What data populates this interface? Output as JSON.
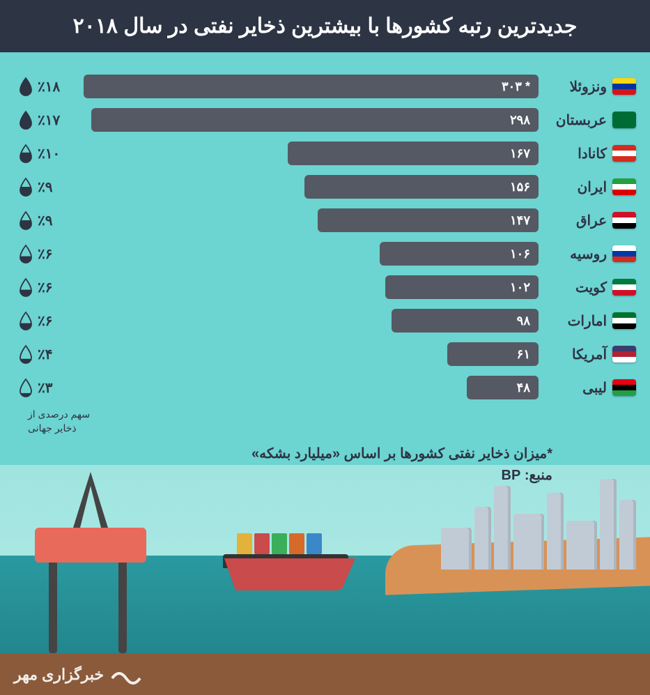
{
  "title": "جدیدترین رتبه کشورها با بیشترین ذخایر نفتی در سال ۲۰۱۸",
  "max_value": 303,
  "bar_color": "#555963",
  "text_color": "#2d3443",
  "background": "#6cd4d1",
  "rows": [
    {
      "country": "ونزوئلا",
      "value": 303,
      "value_label": "* ۳۰۳",
      "percent": "٪۱۸",
      "flag_colors": [
        "#f9d616",
        "#0033a0",
        "#d7141a"
      ],
      "drop_fill": 1.0
    },
    {
      "country": "عربستان",
      "value": 298,
      "value_label": "۲۹۸",
      "percent": "٪۱۷",
      "flag_colors": [
        "#006c35"
      ],
      "drop_fill": 0.95
    },
    {
      "country": "کانادا",
      "value": 167,
      "value_label": "۱۶۷",
      "percent": "٪۱۰",
      "flag_colors": [
        "#d52b1e",
        "#ffffff",
        "#d52b1e"
      ],
      "drop_fill": 0.55
    },
    {
      "country": "ایران",
      "value": 156,
      "value_label": "۱۵۶",
      "percent": "٪۹",
      "flag_colors": [
        "#239f40",
        "#ffffff",
        "#da0000"
      ],
      "drop_fill": 0.5
    },
    {
      "country": "عراق",
      "value": 147,
      "value_label": "۱۴۷",
      "percent": "٪۹",
      "flag_colors": [
        "#ce1126",
        "#ffffff",
        "#000000"
      ],
      "drop_fill": 0.5
    },
    {
      "country": "روسیه",
      "value": 106,
      "value_label": "۱۰۶",
      "percent": "٪۶",
      "flag_colors": [
        "#ffffff",
        "#0039a6",
        "#d52b1e"
      ],
      "drop_fill": 0.35
    },
    {
      "country": "کویت",
      "value": 102,
      "value_label": "۱۰۲",
      "percent": "٪۶",
      "flag_colors": [
        "#007a3d",
        "#ffffff",
        "#ce1126"
      ],
      "drop_fill": 0.35
    },
    {
      "country": "امارات",
      "value": 98,
      "value_label": "۹۸",
      "percent": "٪۶",
      "flag_colors": [
        "#00732f",
        "#ffffff",
        "#000000"
      ],
      "drop_fill": 0.35
    },
    {
      "country": "آمریکا",
      "value": 61,
      "value_label": "۶۱",
      "percent": "٪۴",
      "flag_colors": [
        "#3c3b6e",
        "#b22234",
        "#ffffff"
      ],
      "drop_fill": 0.22
    },
    {
      "country": "لیبی",
      "value": 48,
      "value_label": "۴۸",
      "percent": "٪۳",
      "flag_colors": [
        "#e70013",
        "#000000",
        "#239e46"
      ],
      "drop_fill": 0.17
    }
  ],
  "legend_line1": "سهم درصدی از",
  "legend_line2": "ذخایر جهانی",
  "footnote": "*میزان ذخایر نفتی کشورها بر اساس «میلیارد بشکه»",
  "source": "منبع: BP",
  "logo": "خبرگزاری مهر",
  "cargo_colors": [
    "#3a88c9",
    "#d66a2a",
    "#3aae5a",
    "#c94b4b",
    "#e2b23b"
  ]
}
